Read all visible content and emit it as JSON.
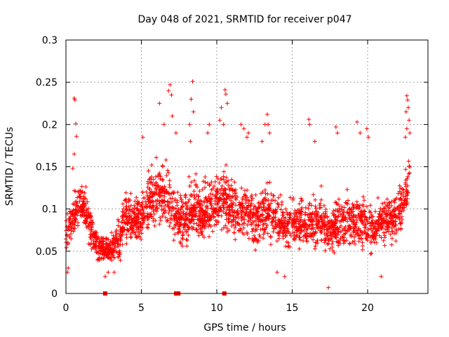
{
  "chart_data": {
    "type": "scatter",
    "title": "Day 048 of 2021, SRMTID for receiver p047",
    "xlabel": "GPS time / hours",
    "ylabel": "SRMTID / TECUs",
    "xlim": [
      0,
      24
    ],
    "ylim": [
      0,
      0.3
    ],
    "xticks": [
      0,
      5,
      10,
      15,
      20
    ],
    "yticks": [
      0,
      0.05,
      0.1,
      0.15,
      0.2,
      0.25,
      0.3
    ],
    "ytick_labels": [
      "0",
      "0.05",
      "0.1",
      "0.15",
      "0.2",
      "0.25",
      "0.3"
    ],
    "grid": true,
    "marker": "+",
    "series_color": "#ff0000",
    "zero_markers_x": [
      2.6,
      7.3,
      7.45,
      10.5
    ],
    "envelope": {
      "x": [
        0,
        0.5,
        1,
        1.5,
        2,
        2.5,
        3,
        3.5,
        4,
        4.5,
        5,
        5.5,
        6,
        6.5,
        7,
        7.5,
        8,
        8.5,
        9,
        9.5,
        10,
        10.5,
        11,
        11.5,
        12,
        12.5,
        13,
        13.5,
        14,
        14.5,
        15,
        15.5,
        16,
        16.5,
        17,
        17.5,
        18,
        18.5,
        19,
        19.5,
        20,
        20.5,
        21,
        21.5,
        22,
        22.5,
        22.8
      ],
      "mean": [
        0.075,
        0.09,
        0.11,
        0.085,
        0.06,
        0.05,
        0.05,
        0.065,
        0.09,
        0.085,
        0.09,
        0.11,
        0.12,
        0.12,
        0.1,
        0.085,
        0.09,
        0.105,
        0.095,
        0.1,
        0.11,
        0.115,
        0.1,
        0.095,
        0.1,
        0.085,
        0.095,
        0.1,
        0.085,
        0.08,
        0.085,
        0.085,
        0.08,
        0.085,
        0.085,
        0.075,
        0.08,
        0.085,
        0.085,
        0.085,
        0.08,
        0.075,
        0.085,
        0.09,
        0.095,
        0.11,
        0.15
      ],
      "spread": [
        0.035,
        0.04,
        0.04,
        0.035,
        0.025,
        0.025,
        0.025,
        0.035,
        0.045,
        0.04,
        0.045,
        0.05,
        0.055,
        0.06,
        0.05,
        0.045,
        0.045,
        0.055,
        0.045,
        0.05,
        0.055,
        0.055,
        0.05,
        0.045,
        0.05,
        0.045,
        0.05,
        0.05,
        0.045,
        0.04,
        0.045,
        0.045,
        0.045,
        0.05,
        0.045,
        0.045,
        0.045,
        0.045,
        0.05,
        0.045,
        0.045,
        0.04,
        0.045,
        0.045,
        0.05,
        0.05,
        0.05
      ]
    },
    "outliers": [
      [
        0.55,
        0.231
      ],
      [
        0.6,
        0.229
      ],
      [
        0.65,
        0.201
      ],
      [
        0.7,
        0.186
      ],
      [
        0.55,
        0.165
      ],
      [
        0.45,
        0.148
      ],
      [
        5.1,
        0.185
      ],
      [
        6.2,
        0.225
      ],
      [
        6.5,
        0.2
      ],
      [
        6.8,
        0.24
      ],
      [
        6.9,
        0.247
      ],
      [
        7.0,
        0.235
      ],
      [
        7.05,
        0.21
      ],
      [
        7.3,
        0.19
      ],
      [
        8.3,
        0.23
      ],
      [
        8.4,
        0.251
      ],
      [
        8.45,
        0.215
      ],
      [
        8.2,
        0.2
      ],
      [
        8.25,
        0.18
      ],
      [
        9.4,
        0.19
      ],
      [
        9.5,
        0.2
      ],
      [
        10.2,
        0.205
      ],
      [
        10.3,
        0.22
      ],
      [
        10.45,
        0.2
      ],
      [
        10.55,
        0.241
      ],
      [
        10.6,
        0.236
      ],
      [
        10.7,
        0.225
      ],
      [
        11.6,
        0.2
      ],
      [
        11.8,
        0.195
      ],
      [
        12.0,
        0.185
      ],
      [
        12.1,
        0.19
      ],
      [
        13.2,
        0.2
      ],
      [
        13.35,
        0.212
      ],
      [
        13.4,
        0.2
      ],
      [
        13.0,
        0.18
      ],
      [
        13.5,
        0.19
      ],
      [
        16.1,
        0.206
      ],
      [
        16.15,
        0.2
      ],
      [
        16.5,
        0.18
      ],
      [
        17.9,
        0.197
      ],
      [
        18.0,
        0.19
      ],
      [
        19.3,
        0.203
      ],
      [
        19.5,
        0.19
      ],
      [
        19.95,
        0.195
      ],
      [
        20.05,
        0.185
      ],
      [
        22.6,
        0.234
      ],
      [
        22.65,
        0.229
      ],
      [
        22.7,
        0.22
      ],
      [
        22.55,
        0.215
      ],
      [
        22.75,
        0.205
      ],
      [
        22.6,
        0.195
      ],
      [
        22.8,
        0.19
      ],
      [
        22.5,
        0.185
      ],
      [
        0.1,
        0.025
      ],
      [
        0.15,
        0.03
      ],
      [
        2.6,
        0.02
      ],
      [
        2.8,
        0.025
      ],
      [
        14.5,
        0.02
      ],
      [
        17.4,
        0.007
      ],
      [
        20.9,
        0.02
      ],
      [
        14.0,
        0.025
      ],
      [
        3.2,
        0.025
      ]
    ]
  }
}
